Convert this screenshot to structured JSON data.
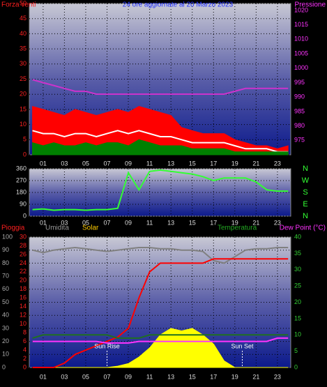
{
  "chart_data": [
    {
      "type": "line",
      "title": "24 ore aggiornate al 20 Marzo 2023",
      "ylabel": "Forza venti",
      "y2label": "Pressione",
      "x": [
        0,
        1,
        2,
        3,
        4,
        5,
        6,
        7,
        8,
        9,
        10,
        11,
        12,
        13,
        14,
        15,
        16,
        17,
        18,
        19,
        20,
        21,
        22,
        23,
        24
      ],
      "xlim": [
        -0.3,
        24.25
      ],
      "xticks": [
        {
          "value": 1,
          "label": "01"
        },
        {
          "value": 3,
          "label": "03"
        },
        {
          "value": 5,
          "label": "05"
        },
        {
          "value": 7,
          "label": "07"
        },
        {
          "value": 9,
          "label": "09"
        },
        {
          "value": 11,
          "label": "11"
        },
        {
          "value": 13,
          "label": "13"
        },
        {
          "value": 15,
          "label": "15"
        },
        {
          "value": 17,
          "label": "17"
        },
        {
          "value": 19,
          "label": "19"
        },
        {
          "value": 21,
          "label": "21"
        },
        {
          "value": 23,
          "label": "23"
        }
      ],
      "ylim": [
        0,
        50
      ],
      "yticks": [
        0,
        5,
        10,
        15,
        20,
        25,
        30,
        35,
        40,
        45,
        50
      ],
      "y2lim": [
        970,
        1022.4
      ],
      "y2ticks": [
        975,
        980,
        985,
        990,
        995,
        1000,
        1005,
        1010,
        1015,
        1020
      ],
      "grid": true,
      "series": [
        {
          "color": "#ff0000",
          "fill": true,
          "values": [
            16,
            15,
            14,
            13,
            15,
            14,
            13,
            14,
            15,
            14,
            16,
            15,
            14,
            13,
            9,
            8,
            7,
            7,
            7,
            5,
            4,
            3,
            3,
            2,
            3
          ]
        },
        {
          "color": "#ffffff",
          "values": [
            8,
            7,
            7,
            6,
            7,
            7,
            6,
            7,
            8,
            7,
            8,
            7,
            6,
            6,
            5,
            4,
            4,
            4,
            4,
            3,
            2,
            2,
            2,
            1,
            1
          ]
        },
        {
          "color": "#008000",
          "fill": true,
          "values": [
            4,
            3,
            4,
            3,
            3,
            4,
            3,
            4,
            4,
            3,
            5,
            4,
            3,
            3,
            3,
            2,
            2,
            2,
            2,
            1,
            1,
            1,
            1,
            1,
            1
          ]
        },
        {
          "color": "#cc33cc",
          "axis": "y2",
          "values": [
            996,
            995,
            994,
            993,
            992,
            992,
            991,
            991,
            991,
            991,
            991,
            991,
            991,
            991,
            991,
            991,
            991,
            991,
            991,
            992,
            993,
            993,
            993,
            993,
            993
          ]
        }
      ]
    },
    {
      "type": "line",
      "x": [
        0,
        1,
        2,
        3,
        4,
        5,
        6,
        7,
        8,
        9,
        10,
        11,
        12,
        13,
        14,
        15,
        16,
        17,
        18,
        19,
        20,
        21,
        22,
        23,
        24
      ],
      "xlim": [
        -0.3,
        24.25
      ],
      "xticks": [
        {
          "value": 1,
          "label": "01"
        },
        {
          "value": 3,
          "label": "03"
        },
        {
          "value": 5,
          "label": "05"
        },
        {
          "value": 7,
          "label": "07"
        },
        {
          "value": 9,
          "label": "09"
        },
        {
          "value": 11,
          "label": "11"
        },
        {
          "value": 13,
          "label": "13"
        },
        {
          "value": 15,
          "label": "15"
        },
        {
          "value": 17,
          "label": "17"
        },
        {
          "value": 19,
          "label": "19"
        },
        {
          "value": 21,
          "label": "21"
        },
        {
          "value": 23,
          "label": "23"
        }
      ],
      "ylim": [
        0,
        360
      ],
      "yticks": [
        0,
        90,
        180,
        270,
        360
      ],
      "direction_labels": [
        "N",
        "W",
        "S",
        "E",
        "N"
      ],
      "grid": true,
      "series": [
        {
          "color": "#33ff33",
          "values": [
            50,
            55,
            45,
            50,
            50,
            45,
            50,
            50,
            60,
            330,
            200,
            340,
            350,
            340,
            330,
            320,
            300,
            270,
            290,
            290,
            290,
            260,
            200,
            190,
            190
          ]
        }
      ]
    },
    {
      "type": "line",
      "labels": [
        "Pioggia",
        "Umidita",
        "Solar",
        "Temperatura",
        "Dew Point (°C)"
      ],
      "annotations": [
        "Sun Rise",
        "Sun Set"
      ],
      "x": [
        0,
        1,
        2,
        3,
        4,
        5,
        6,
        7,
        8,
        9,
        10,
        11,
        12,
        13,
        14,
        15,
        16,
        17,
        18,
        19,
        20,
        21,
        22,
        23,
        24
      ],
      "xlim": [
        -0.3,
        24.25
      ],
      "xticks": [
        {
          "value": 1,
          "label": "01"
        },
        {
          "value": 3,
          "label": "03"
        },
        {
          "value": 5,
          "label": "05"
        },
        {
          "value": 7,
          "label": "07"
        },
        {
          "value": 9,
          "label": "09"
        },
        {
          "value": 11,
          "label": "11"
        },
        {
          "value": 13,
          "label": "13"
        },
        {
          "value": 15,
          "label": "15"
        },
        {
          "value": 17,
          "label": "17"
        },
        {
          "value": 19,
          "label": "19"
        },
        {
          "value": 21,
          "label": "21"
        },
        {
          "value": 23,
          "label": "23"
        }
      ],
      "ylim": [
        0,
        100
      ],
      "yticks": [
        0,
        10,
        20,
        30,
        40,
        50,
        60,
        70,
        80,
        90,
        100
      ],
      "y3lim": [
        0,
        30
      ],
      "y3ticks": [
        0,
        2,
        4,
        6,
        8,
        10,
        12,
        14,
        16,
        18,
        20,
        22,
        24,
        26,
        28,
        30
      ],
      "y2lim": [
        0,
        40
      ],
      "y2ticks": [
        0,
        5,
        10,
        15,
        20,
        25,
        30,
        35,
        40
      ],
      "grid": true,
      "series": [
        {
          "color": "#ffff00",
          "fill": true,
          "values": [
            0,
            0,
            0,
            0,
            0,
            0,
            0,
            0,
            1,
            3,
            8,
            15,
            25,
            30,
            28,
            30,
            25,
            18,
            5,
            0,
            0,
            0,
            0,
            0,
            0
          ]
        },
        {
          "color": "#808080",
          "values": [
            90,
            88,
            90,
            91,
            92,
            91,
            90,
            89,
            90,
            91,
            92,
            92,
            91,
            91,
            90,
            90,
            89,
            82,
            80,
            85,
            90,
            91,
            91,
            92,
            92
          ]
        },
        {
          "color": "#ff0000",
          "axis": "y3",
          "values": [
            0,
            0,
            0,
            1,
            3,
            4,
            5,
            6,
            7,
            9,
            16,
            22,
            24,
            24,
            24,
            24,
            24,
            25,
            25,
            25,
            25,
            25,
            25,
            25,
            25
          ]
        },
        {
          "color": "#207020",
          "axis": "y2",
          "values": [
            9,
            10,
            10,
            10,
            10,
            10,
            10,
            10,
            9,
            9,
            9,
            10,
            10,
            10,
            10,
            10,
            10,
            10,
            10,
            10,
            10,
            10,
            10,
            10,
            10
          ]
        },
        {
          "color": "#ff33ff",
          "axis": "y2",
          "values": [
            8,
            8,
            8,
            8,
            8,
            8,
            8,
            7.5,
            7.5,
            7.5,
            8,
            8,
            8,
            8,
            8,
            8,
            8,
            8,
            8,
            8,
            8,
            8,
            8,
            9,
            9
          ]
        }
      ]
    }
  ]
}
